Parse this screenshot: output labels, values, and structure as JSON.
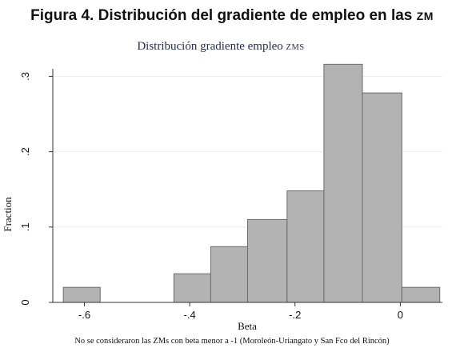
{
  "figure_title": "Figura 4. Distribución del gradiente de empleo en las ",
  "figure_title_sc": "ZM",
  "footnote": "No se consideraron las ZMs con beta menor a -1 (Moroleón-Uriangato y San Fco del Rincón)",
  "chart_data": {
    "type": "histogram",
    "title": "Distribución gradiente empleo",
    "title_suffix": "ZMS",
    "xlabel": "Beta",
    "ylabel": "Fraction",
    "xlim": [
      -0.66,
      0.08
    ],
    "ylim": [
      0,
      0.31
    ],
    "xticks": [
      -0.6,
      -0.4,
      -0.2,
      0
    ],
    "xtick_labels": [
      "-.6",
      "-.4",
      "-.2",
      "0"
    ],
    "yticks": [
      0,
      0.1,
      0.2,
      0.3
    ],
    "ytick_labels": [
      "0",
      ".1",
      ".2",
      ".3"
    ],
    "grid": true,
    "bar_color": "#b3b3b3",
    "bar_edge_color": "#6b6b6b",
    "bins": [
      {
        "x0": -0.64,
        "x1": -0.57,
        "value": 0.02
      },
      {
        "x0": -0.43,
        "x1": -0.36,
        "value": 0.038
      },
      {
        "x0": -0.36,
        "x1": -0.29,
        "value": 0.074
      },
      {
        "x0": -0.29,
        "x1": -0.215,
        "value": 0.11
      },
      {
        "x0": -0.215,
        "x1": -0.145,
        "value": 0.148
      },
      {
        "x0": -0.145,
        "x1": -0.072,
        "value": 0.316
      },
      {
        "x0": -0.072,
        "x1": 0.003,
        "value": 0.278
      },
      {
        "x0": 0.003,
        "x1": 0.075,
        "value": 0.02
      }
    ]
  }
}
